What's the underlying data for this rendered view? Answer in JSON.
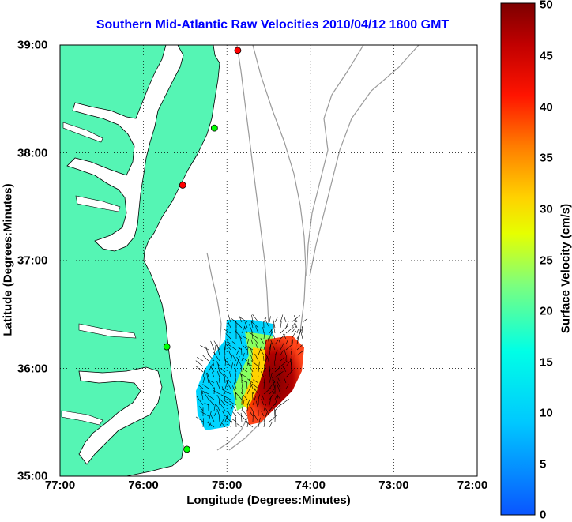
{
  "title": "Southern Mid-Atlantic Raw Velocities 2010/04/12 1800 GMT",
  "xlabel": "Longitude (Degrees:Minutes)",
  "ylabel": "Latitude (Degrees:Minutes)",
  "colorbar_label": "Surface Velocity (cm/s)",
  "x_ticks": [
    "77:00",
    "76:00",
    "75:00",
    "74:00",
    "73:00",
    "72:00"
  ],
  "y_ticks": [
    "39:00",
    "38:00",
    "37:00",
    "36:00",
    "35:00"
  ],
  "colorbar_ticks": [
    "50",
    "45",
    "40",
    "35",
    "30",
    "25",
    "20",
    "15",
    "10",
    "5",
    "0"
  ],
  "map": {
    "lon_range": [
      -77,
      -72
    ],
    "lat_range": [
      35,
      39
    ],
    "land_color": "#55f5b4",
    "isobath_color": "#9a9a9a",
    "grid": "dotted"
  },
  "colorbar": {
    "range": [
      0,
      50
    ],
    "colormap": "jet"
  },
  "stations": [
    {
      "lon": -74.87,
      "lat": 38.95,
      "color": "#ff0000"
    },
    {
      "lon": -75.15,
      "lat": 38.23,
      "color": "#00ff00"
    },
    {
      "lon": -75.53,
      "lat": 37.7,
      "color": "#ff0000"
    },
    {
      "lon": -75.72,
      "lat": 36.2,
      "color": "#00ff00"
    },
    {
      "lon": -75.48,
      "lat": 35.25,
      "color": "#00ff00"
    }
  ]
}
